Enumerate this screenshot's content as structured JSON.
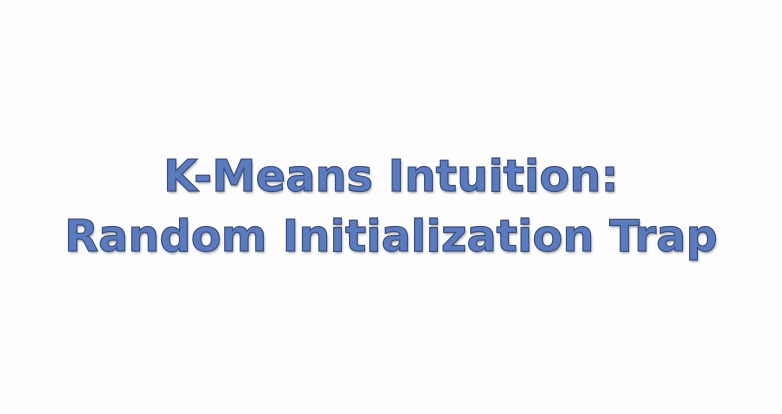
{
  "slide": {
    "title_line_1": "K-Means Intuition:",
    "title_line_2": "Random Initialization Trap"
  },
  "colors": {
    "background": "#fdfdfd",
    "title_fill": "#5b7bc0",
    "title_outline": "#3c4f7c"
  }
}
